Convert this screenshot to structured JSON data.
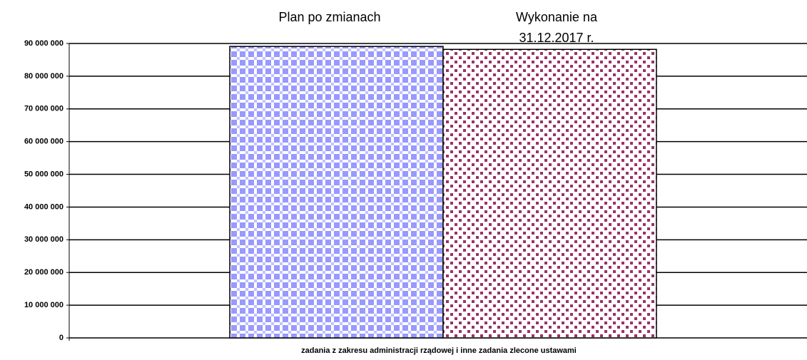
{
  "chart_data": {
    "type": "bar",
    "categories": [
      "zadania z zakresu administracji rządowej i inne zadania zlecone ustawami"
    ],
    "series": [
      {
        "name": "Plan po zmianach",
        "color": "#9999ff",
        "pattern": "checker",
        "values": [
          89100000
        ]
      },
      {
        "name": "Wykonanie na 31.12.2017 r.",
        "color": "#993366",
        "pattern": "dots",
        "values": [
          88200000
        ]
      }
    ],
    "ylim": [
      0,
      90000000
    ],
    "yticks": [
      {
        "value": 0,
        "label": "0"
      },
      {
        "value": 10000000,
        "label": "10 000 000"
      },
      {
        "value": 20000000,
        "label": "20 000 000"
      },
      {
        "value": 30000000,
        "label": "30 000 000"
      },
      {
        "value": 40000000,
        "label": "40 000 000"
      },
      {
        "value": 50000000,
        "label": "50 000 000"
      },
      {
        "value": 60000000,
        "label": "60 000 000"
      },
      {
        "value": 70000000,
        "label": "70 000 000"
      },
      {
        "value": 80000000,
        "label": "80 000 000"
      },
      {
        "value": 90000000,
        "label": "90 000 000"
      }
    ],
    "grid": true
  }
}
